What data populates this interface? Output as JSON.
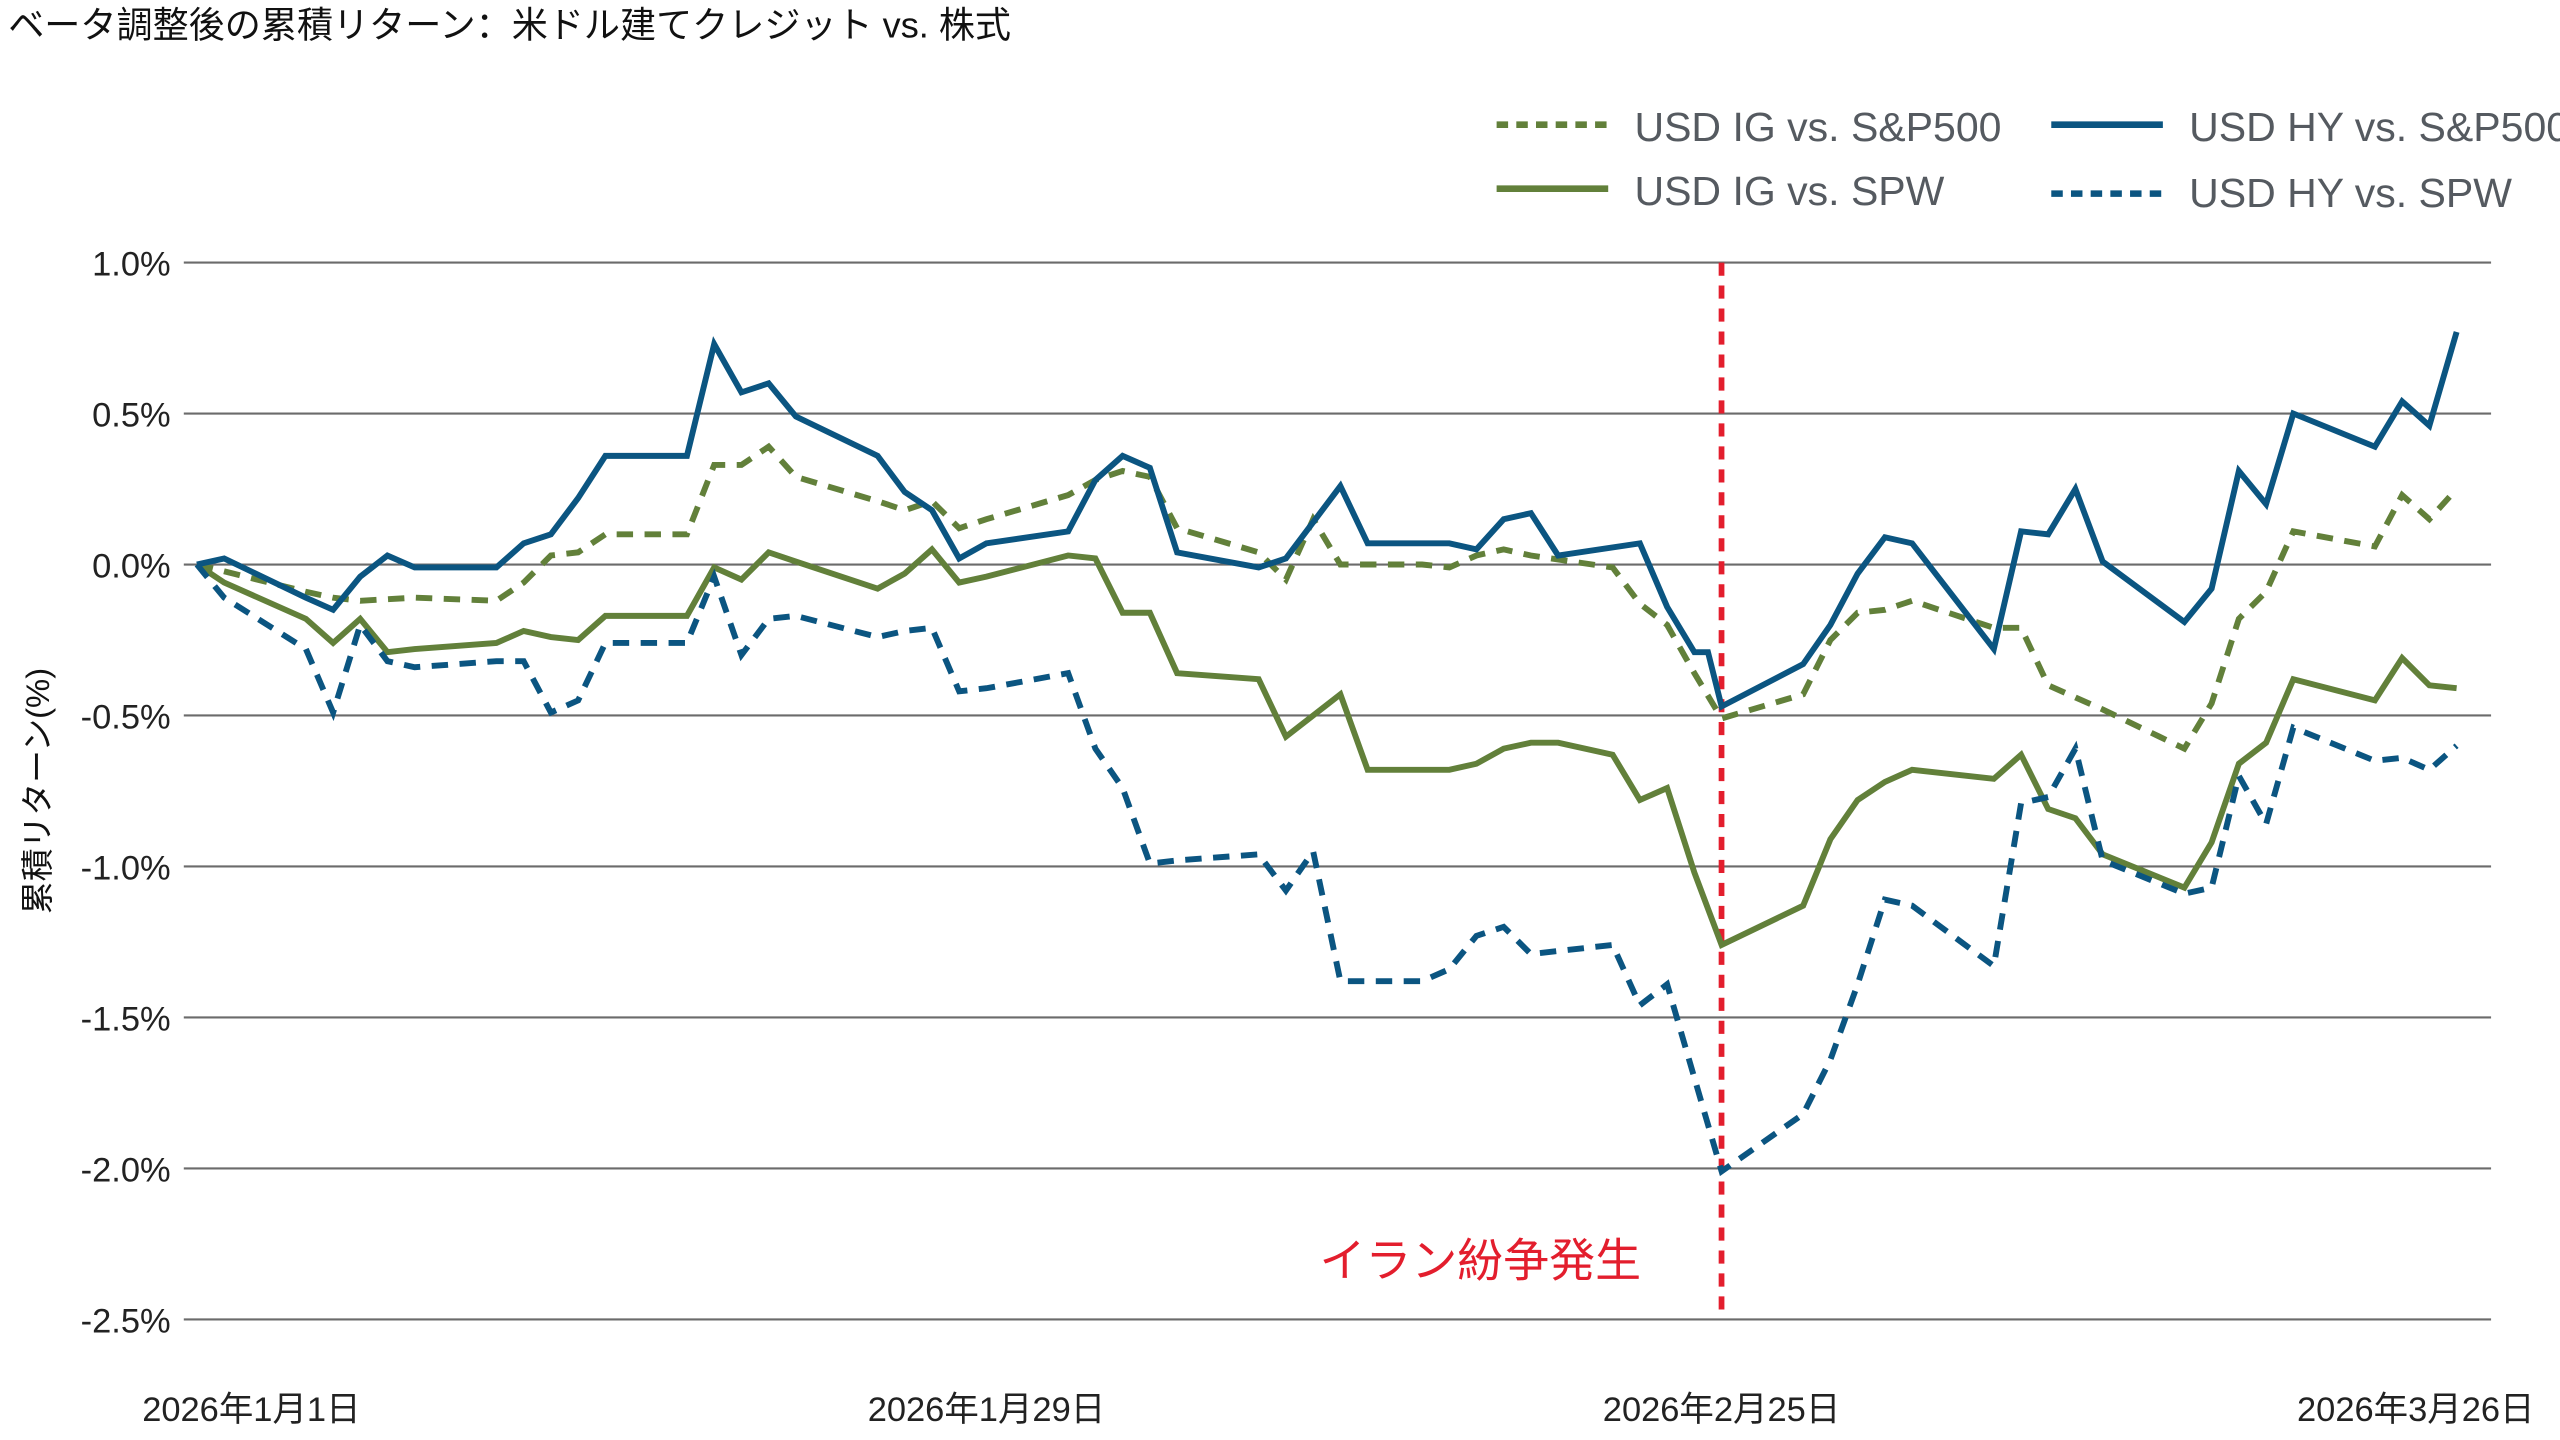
{
  "chart_data": {
    "type": "line",
    "title": "ベータ調整後の累積リターン：米ドル建てクレジット vs. 株式",
    "ylabel": "累積リターン(%)",
    "xlabel": "",
    "x_unit": "day index from 2026年1月1日",
    "xlim": [
      0,
      83
    ],
    "ylim": [
      -2.5,
      1.0
    ],
    "yticks": [
      1.0,
      0.5,
      0.0,
      -0.5,
      -1.0,
      -1.5,
      -2.0,
      -2.5
    ],
    "ytick_labels": [
      "1.0%",
      "0.5%",
      "0.0%",
      "-0.5%",
      "-1.0%",
      "-1.5%",
      "-2.0%",
      "-2.5%"
    ],
    "xticks": [
      {
        "x": 2,
        "label": "2026年1月1日"
      },
      {
        "x": 29,
        "label": "2026年1月29日"
      },
      {
        "x": 56,
        "label": "2026年2月25日"
      },
      {
        "x": 81.5,
        "label": "2026年3月26日"
      }
    ],
    "grid": true,
    "legend_position": "top-right",
    "annotation": {
      "x": 56,
      "label": "イラン紛争発生",
      "color": "#e31e2d"
    },
    "series": [
      {
        "name": "USD IG vs. S&P500",
        "color": "#62803a",
        "dash": "dashed",
        "points": [
          [
            0,
            0
          ],
          [
            4,
            -0.09
          ],
          [
            5,
            -0.11
          ],
          [
            6,
            -0.12
          ],
          [
            8,
            -0.11
          ],
          [
            11,
            -0.12
          ],
          [
            12,
            -0.06
          ],
          [
            13,
            0.03
          ],
          [
            14,
            0.04
          ],
          [
            15,
            0.1
          ],
          [
            18,
            0.1
          ],
          [
            19,
            0.33
          ],
          [
            20,
            0.33
          ],
          [
            21,
            0.39
          ],
          [
            22,
            0.29
          ],
          [
            25,
            0.21
          ],
          [
            26,
            0.18
          ],
          [
            27,
            0.21
          ],
          [
            28,
            0.12
          ],
          [
            29,
            0.15
          ],
          [
            32,
            0.23
          ],
          [
            33,
            0.28
          ],
          [
            34,
            0.31
          ],
          [
            35,
            0.29
          ],
          [
            36,
            0.12
          ],
          [
            39,
            0.04
          ],
          [
            40,
            -0.05
          ],
          [
            41,
            0.15
          ],
          [
            42,
            0.0
          ],
          [
            45,
            0.0
          ],
          [
            46,
            -0.01
          ],
          [
            47,
            0.03
          ],
          [
            48,
            0.05
          ],
          [
            49,
            0.03
          ],
          [
            52,
            -0.01
          ],
          [
            53,
            -0.13
          ],
          [
            54,
            -0.2
          ],
          [
            55,
            -0.36
          ],
          [
            56,
            -0.51
          ],
          [
            59,
            -0.43
          ],
          [
            60,
            -0.25
          ],
          [
            61,
            -0.16
          ],
          [
            62,
            -0.15
          ],
          [
            63,
            -0.12
          ],
          [
            66,
            -0.21
          ],
          [
            67,
            -0.21
          ],
          [
            68,
            -0.4
          ],
          [
            69,
            -0.44
          ],
          [
            70,
            -0.48
          ],
          [
            73,
            -0.61
          ],
          [
            74,
            -0.46
          ],
          [
            75,
            -0.18
          ],
          [
            76,
            -0.09
          ],
          [
            77,
            0.11
          ],
          [
            80,
            0.06
          ],
          [
            81,
            0.23
          ],
          [
            82,
            0.15
          ],
          [
            83,
            0.25
          ]
        ]
      },
      {
        "name": "USD IG vs. SPW",
        "color": "#62803a",
        "dash": "solid",
        "points": [
          [
            0,
            0
          ],
          [
            1,
            -0.06
          ],
          [
            4,
            -0.18
          ],
          [
            5,
            -0.26
          ],
          [
            6,
            -0.18
          ],
          [
            7,
            -0.29
          ],
          [
            8,
            -0.28
          ],
          [
            11,
            -0.26
          ],
          [
            12,
            -0.22
          ],
          [
            13,
            -0.24
          ],
          [
            14,
            -0.25
          ],
          [
            15,
            -0.17
          ],
          [
            18,
            -0.17
          ],
          [
            19,
            -0.01
          ],
          [
            20,
            -0.05
          ],
          [
            21,
            0.04
          ],
          [
            22,
            0.01
          ],
          [
            25,
            -0.08
          ],
          [
            26,
            -0.03
          ],
          [
            27,
            0.05
          ],
          [
            28,
            -0.06
          ],
          [
            29,
            -0.04
          ],
          [
            32,
            0.03
          ],
          [
            33,
            0.02
          ],
          [
            34,
            -0.16
          ],
          [
            35,
            -0.16
          ],
          [
            36,
            -0.36
          ],
          [
            39,
            -0.38
          ],
          [
            40,
            -0.57
          ],
          [
            42,
            -0.43
          ],
          [
            43,
            -0.68
          ],
          [
            46,
            -0.68
          ],
          [
            47,
            -0.66
          ],
          [
            48,
            -0.61
          ],
          [
            49,
            -0.59
          ],
          [
            50,
            -0.59
          ],
          [
            52,
            -0.63
          ],
          [
            53,
            -0.78
          ],
          [
            54,
            -0.74
          ],
          [
            55,
            -1.02
          ],
          [
            56,
            -1.26
          ],
          [
            59,
            -1.13
          ],
          [
            60,
            -0.91
          ],
          [
            61,
            -0.78
          ],
          [
            62,
            -0.72
          ],
          [
            63,
            -0.68
          ],
          [
            66,
            -0.71
          ],
          [
            67,
            -0.63
          ],
          [
            68,
            -0.81
          ],
          [
            69,
            -0.84
          ],
          [
            70,
            -0.96
          ],
          [
            73,
            -1.07
          ],
          [
            74,
            -0.92
          ],
          [
            75,
            -0.66
          ],
          [
            76,
            -0.59
          ],
          [
            77,
            -0.38
          ],
          [
            80,
            -0.45
          ],
          [
            81,
            -0.31
          ],
          [
            82,
            -0.4
          ],
          [
            83,
            -0.41
          ]
        ]
      },
      {
        "name": "USD HY vs. S&P500",
        "color": "#0b5581",
        "dash": "solid",
        "points": [
          [
            0,
            0
          ],
          [
            1,
            0.02
          ],
          [
            4,
            -0.11
          ],
          [
            5,
            -0.15
          ],
          [
            6,
            -0.04
          ],
          [
            7,
            0.03
          ],
          [
            8,
            -0.01
          ],
          [
            11,
            -0.01
          ],
          [
            12,
            0.07
          ],
          [
            13,
            0.1
          ],
          [
            14,
            0.22
          ],
          [
            15,
            0.36
          ],
          [
            18,
            0.36
          ],
          [
            19,
            0.73
          ],
          [
            20,
            0.57
          ],
          [
            21,
            0.6
          ],
          [
            22,
            0.49
          ],
          [
            25,
            0.36
          ],
          [
            26,
            0.24
          ],
          [
            27,
            0.18
          ],
          [
            28,
            0.02
          ],
          [
            29,
            0.07
          ],
          [
            32,
            0.11
          ],
          [
            33,
            0.28
          ],
          [
            34,
            0.36
          ],
          [
            35,
            0.32
          ],
          [
            36,
            0.04
          ],
          [
            39,
            -0.01
          ],
          [
            40,
            0.02
          ],
          [
            42,
            0.26
          ],
          [
            43,
            0.07
          ],
          [
            46,
            0.07
          ],
          [
            47,
            0.05
          ],
          [
            48,
            0.15
          ],
          [
            49,
            0.17
          ],
          [
            50,
            0.03
          ],
          [
            53,
            0.07
          ],
          [
            54,
            -0.14
          ],
          [
            55,
            -0.29
          ],
          [
            55.5,
            -0.29
          ],
          [
            56,
            -0.47
          ],
          [
            59,
            -0.33
          ],
          [
            60,
            -0.2
          ],
          [
            61,
            -0.03
          ],
          [
            62,
            0.09
          ],
          [
            63,
            0.07
          ],
          [
            66,
            -0.28
          ],
          [
            67,
            0.11
          ],
          [
            68,
            0.1
          ],
          [
            69,
            0.25
          ],
          [
            70,
            0.01
          ],
          [
            73,
            -0.19
          ],
          [
            74,
            -0.08
          ],
          [
            75,
            0.31
          ],
          [
            76,
            0.2
          ],
          [
            77,
            0.5
          ],
          [
            80,
            0.39
          ],
          [
            81,
            0.54
          ],
          [
            82,
            0.46
          ],
          [
            83,
            0.77
          ]
        ]
      },
      {
        "name": "USD HY vs. SPW",
        "color": "#0b5581",
        "dash": "dashed",
        "points": [
          [
            0,
            0
          ],
          [
            1,
            -0.11
          ],
          [
            4,
            -0.28
          ],
          [
            5,
            -0.49
          ],
          [
            6,
            -0.2
          ],
          [
            7,
            -0.32
          ],
          [
            8,
            -0.34
          ],
          [
            11,
            -0.32
          ],
          [
            12,
            -0.32
          ],
          [
            13,
            -0.49
          ],
          [
            14,
            -0.45
          ],
          [
            15,
            -0.26
          ],
          [
            18,
            -0.26
          ],
          [
            19,
            -0.04
          ],
          [
            20,
            -0.3
          ],
          [
            21,
            -0.18
          ],
          [
            22,
            -0.17
          ],
          [
            25,
            -0.24
          ],
          [
            26,
            -0.22
          ],
          [
            27,
            -0.21
          ],
          [
            28,
            -0.42
          ],
          [
            29,
            -0.41
          ],
          [
            32,
            -0.36
          ],
          [
            33,
            -0.61
          ],
          [
            34,
            -0.74
          ],
          [
            35,
            -0.99
          ],
          [
            36,
            -0.98
          ],
          [
            39,
            -0.96
          ],
          [
            40,
            -1.08
          ],
          [
            41,
            -0.95
          ],
          [
            42,
            -1.38
          ],
          [
            45,
            -1.38
          ],
          [
            46,
            -1.34
          ],
          [
            47,
            -1.23
          ],
          [
            48,
            -1.2
          ],
          [
            49,
            -1.29
          ],
          [
            52,
            -1.26
          ],
          [
            53,
            -1.46
          ],
          [
            54,
            -1.39
          ],
          [
            55,
            -1.7
          ],
          [
            56,
            -2.01
          ],
          [
            59,
            -1.82
          ],
          [
            60,
            -1.64
          ],
          [
            61,
            -1.39
          ],
          [
            62,
            -1.11
          ],
          [
            63,
            -1.13
          ],
          [
            66,
            -1.33
          ],
          [
            67,
            -0.79
          ],
          [
            68,
            -0.77
          ],
          [
            69,
            -0.61
          ],
          [
            70,
            -0.98
          ],
          [
            73,
            -1.09
          ],
          [
            74,
            -1.07
          ],
          [
            75,
            -0.7
          ],
          [
            76,
            -0.86
          ],
          [
            77,
            -0.54
          ],
          [
            80,
            -0.65
          ],
          [
            81,
            -0.64
          ],
          [
            82,
            -0.68
          ],
          [
            83,
            -0.6
          ]
        ]
      }
    ]
  }
}
